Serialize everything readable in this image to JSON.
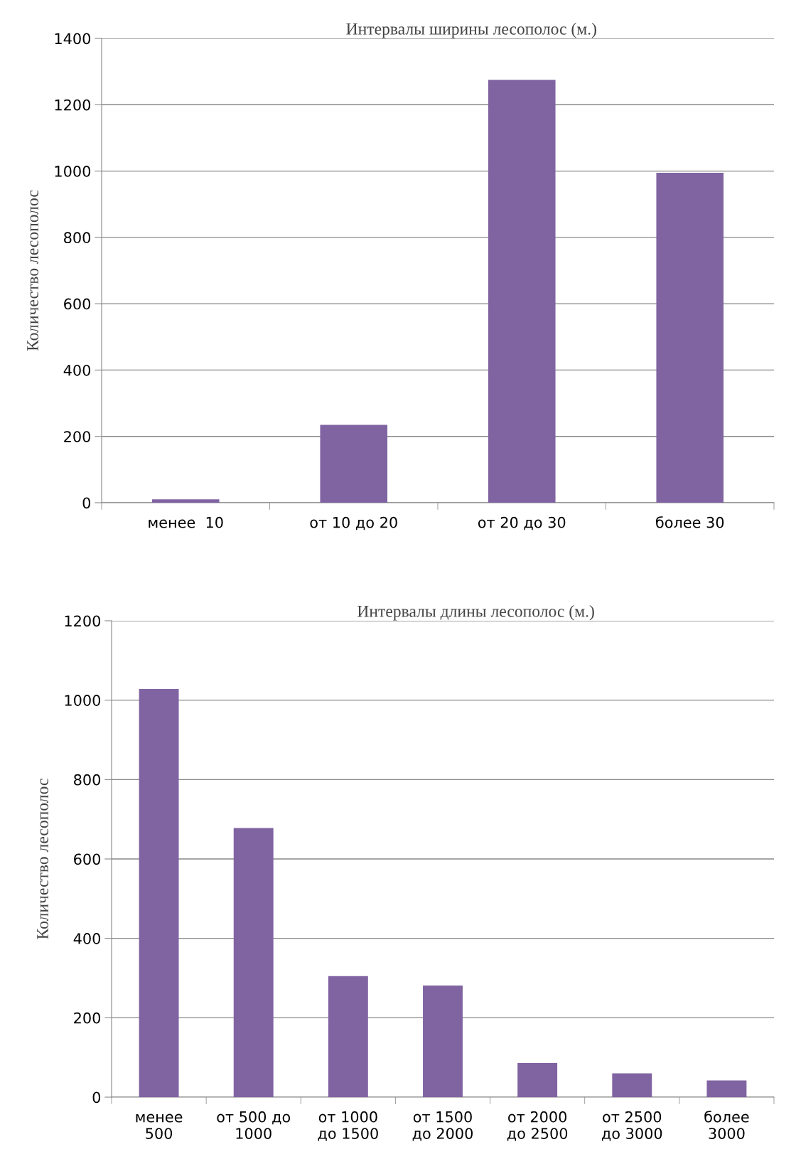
{
  "chart_data": [
    {
      "type": "bar",
      "title": "Интервалы ширины лесополос (м.)",
      "ylabel": "Количество лесополос",
      "categories": [
        "менее  10",
        "от 10 до 20",
        "от 20 до 30",
        "более 30"
      ],
      "values": [
        10,
        235,
        1275,
        995
      ],
      "color": "#8064a2",
      "ylim": [
        0,
        1400
      ],
      "yticks": [
        0,
        200,
        400,
        600,
        800,
        1000,
        1200,
        1400
      ],
      "grid": "y"
    },
    {
      "type": "bar",
      "title": "Интервалы длины лесополос (м.)",
      "ylabel": "Количество лесополос",
      "categories": [
        "менее\n500",
        "от 500 до\n1000",
        "от 1000\nдо 1500",
        "от 1500\nдо 2000",
        "от 2000\nдо 2500",
        "от 2500\nдо 3000",
        "более\n3000"
      ],
      "values": [
        1028,
        678,
        305,
        281,
        86,
        60,
        42
      ],
      "color": "#8064a2",
      "ylim": [
        0,
        1200
      ],
      "yticks": [
        0,
        200,
        400,
        600,
        800,
        1000,
        1200
      ],
      "grid": "y"
    }
  ]
}
